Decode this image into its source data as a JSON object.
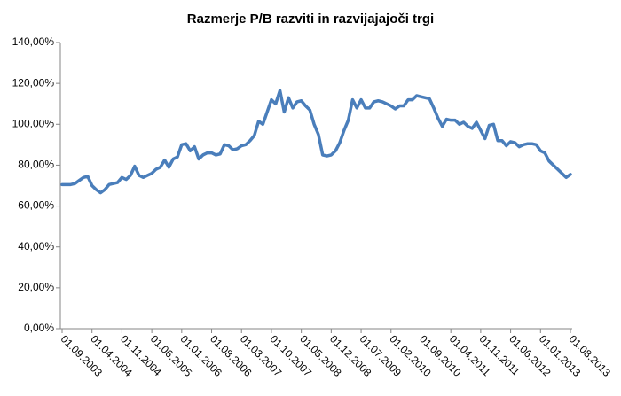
{
  "chart_data": {
    "type": "line",
    "title": "Razmerje  P/B razviti  in razvijajajoči  trgi",
    "categories": [
      "01.09.2003",
      null,
      null,
      null,
      null,
      null,
      null,
      "01.04.2004",
      null,
      null,
      null,
      null,
      null,
      null,
      "01.11.2004",
      null,
      null,
      null,
      null,
      null,
      null,
      "01.06.2005",
      null,
      null,
      null,
      null,
      null,
      null,
      "01.01.2006",
      null,
      null,
      null,
      null,
      null,
      null,
      "01.08.2006",
      null,
      null,
      null,
      null,
      null,
      null,
      "01.03.2007",
      null,
      null,
      null,
      null,
      null,
      null,
      "01.10.2007",
      null,
      null,
      null,
      null,
      null,
      null,
      "01.05.2008",
      null,
      null,
      null,
      null,
      null,
      null,
      "01.12.2008",
      null,
      null,
      null,
      null,
      null,
      null,
      "01.07.2009",
      null,
      null,
      null,
      null,
      null,
      null,
      "01.02.2010",
      null,
      null,
      null,
      null,
      null,
      null,
      "01.09.2010",
      null,
      null,
      null,
      null,
      null,
      null,
      "01.04.2011",
      null,
      null,
      null,
      null,
      null,
      null,
      "01.11.2011",
      null,
      null,
      null,
      null,
      null,
      null,
      "01.06.2012",
      null,
      null,
      null,
      null,
      null,
      null,
      "01.01.2013",
      null,
      null,
      null,
      null,
      null,
      null,
      "01.08.2013"
    ],
    "series": [
      {
        "color": "#4a7ebb",
        "values": [
          70.5,
          70.5,
          70.5,
          71,
          72.5,
          74,
          74.5,
          70,
          68,
          66.5,
          68,
          70.5,
          71,
          71.5,
          74,
          73,
          75,
          79.5,
          75,
          74,
          75,
          76,
          78,
          79,
          82.5,
          79,
          83,
          84,
          90,
          90.5,
          87,
          89,
          83,
          85,
          86,
          86,
          85,
          85.5,
          90,
          89.5,
          87.5,
          88,
          89.5,
          90,
          92,
          94.5,
          101.5,
          100,
          106,
          112,
          110,
          116.5,
          106,
          113,
          108,
          111,
          111.5,
          109,
          107,
          100,
          95,
          85,
          84.5,
          85,
          87,
          91,
          97,
          102,
          112,
          108,
          112,
          108,
          108,
          111,
          111.5,
          111,
          110,
          109,
          107.5,
          109,
          109,
          112,
          112,
          114,
          113.5,
          113,
          112.5,
          108,
          103,
          99,
          102.5,
          102,
          102,
          100,
          101,
          99,
          98,
          101,
          97,
          93,
          99.5,
          100,
          92,
          92,
          89.5,
          91.5,
          91,
          89,
          90,
          90.5,
          90.5,
          90,
          87,
          86,
          82,
          80,
          78,
          76,
          74,
          75.5
        ]
      }
    ],
    "ylim": [
      0,
      140
    ],
    "yticks": [
      {
        "value": 0,
        "label": "0,00%"
      },
      {
        "value": 20,
        "label": "20,00%"
      },
      {
        "value": 40,
        "label": "40,00%"
      },
      {
        "value": 60,
        "label": "60,00%"
      },
      {
        "value": 80,
        "label": "80,00%"
      },
      {
        "value": 100,
        "label": "100,00%"
      },
      {
        "value": 120,
        "label": "120,00%"
      },
      {
        "value": 140,
        "label": "140,00%"
      }
    ],
    "grid": false
  }
}
